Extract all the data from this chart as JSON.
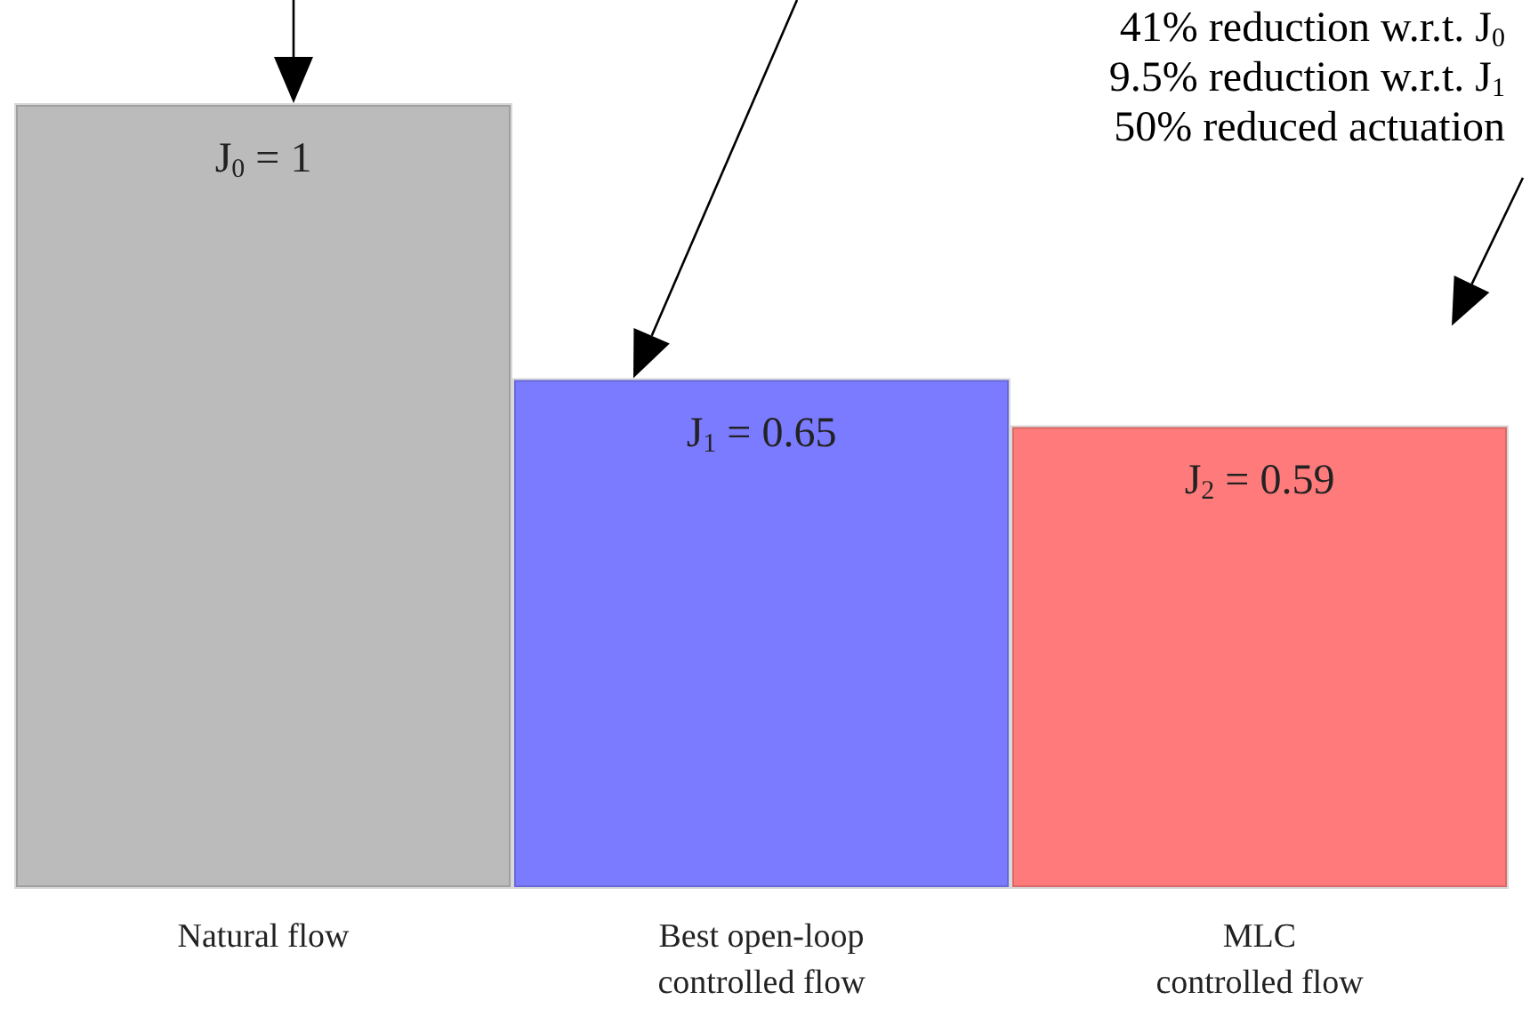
{
  "chart_data": {
    "type": "bar",
    "categories": [
      "Natural flow",
      "Best open-loop\ncontrolled flow",
      "MLC\ncontrolled flow"
    ],
    "values": [
      1,
      0.65,
      0.59
    ],
    "colors": [
      "#bbbbbb",
      "#7b7bff",
      "#ff7b7b"
    ],
    "value_labels": [
      "J$_{0}$ = 1",
      "J$_{1}$ = 0.65",
      "J$_{2}$ = 0.59"
    ],
    "annotations": [
      "41% reduction w.r.t. J$_{0}$",
      "9.5% reduction w.r.t. J$_{1}$",
      "50% reduced actuation"
    ],
    "tick_labels": "x"
  }
}
